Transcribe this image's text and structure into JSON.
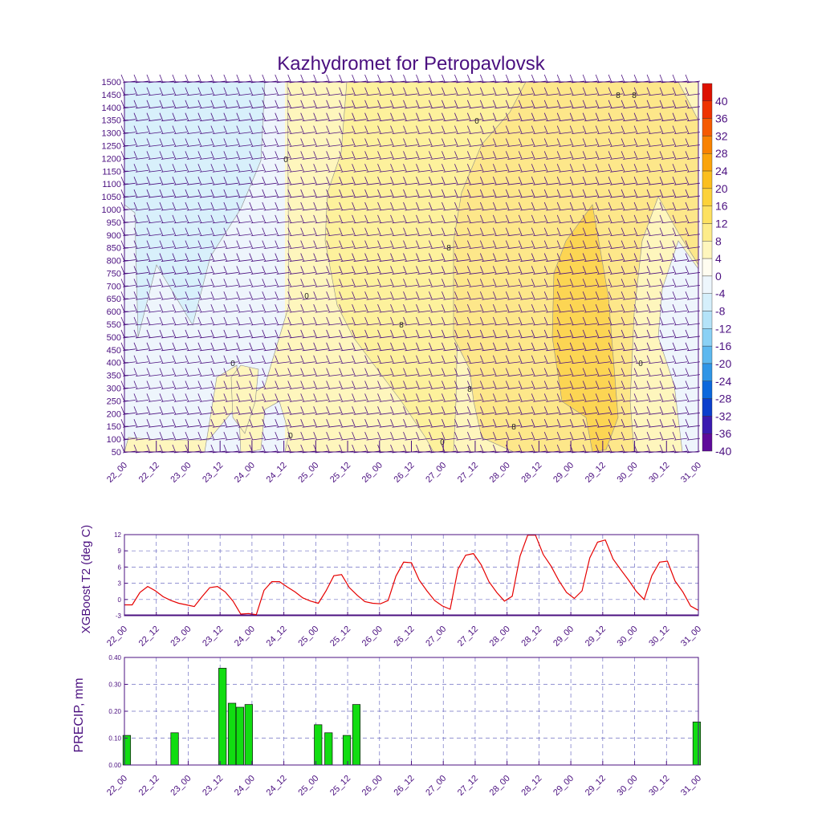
{
  "title": "Kazhydromet for Petropavlovsk",
  "time_labels": [
    "22_00",
    "22_12",
    "23_00",
    "23_12",
    "24_00",
    "24_12",
    "25_00",
    "25_12",
    "26_00",
    "26_12",
    "27_00",
    "27_12",
    "28_00",
    "28_12",
    "29_00",
    "29_12",
    "30_00",
    "30_12",
    "31_00"
  ],
  "colors": {
    "text": "#4b1080",
    "frame": "#4b1080",
    "line": "#e60000",
    "bar": "#11dd11",
    "grid": "#3333aa"
  },
  "chart_data": [
    {
      "type": "heatmap",
      "title": "Kazhydromet for Petropavlovsk",
      "y_ticks": [
        1500,
        1450,
        1400,
        1350,
        1300,
        1250,
        1200,
        1150,
        1100,
        1050,
        1000,
        950,
        900,
        850,
        800,
        750,
        700,
        650,
        600,
        550,
        500,
        450,
        400,
        350,
        300,
        250,
        200,
        150,
        100,
        50
      ],
      "ylim": [
        50,
        1500
      ],
      "x_range": [
        "22_00",
        "31_00"
      ],
      "colorbar": {
        "labels": [
          "40",
          "36",
          "32",
          "28",
          "24",
          "20",
          "16",
          "12",
          "8",
          "4",
          "0",
          "-4",
          "-8",
          "-12",
          "-16",
          "-20",
          "-24",
          "-28",
          "-32",
          "-36",
          "-40"
        ],
        "colors": [
          "#dd1100",
          "#ee3300",
          "#f55a00",
          "#f88200",
          "#faa40a",
          "#fbbf1e",
          "#fcd23a",
          "#fde161",
          "#fdec8a",
          "#fef6bd",
          "#fffdf0",
          "#edf6fc",
          "#d5effb",
          "#b4e3f8",
          "#8ad1f5",
          "#5db8ef",
          "#2f95e6",
          "#0b68dc",
          "#0a3fcc",
          "#3a1bb0",
          "#5e0a9a"
        ]
      },
      "contour_labels": [
        "0",
        "0",
        "0",
        "0",
        "0",
        "0",
        "0",
        "8",
        "8",
        "8",
        "8",
        "8",
        "8"
      ],
      "grid": true
    },
    {
      "type": "line",
      "ylabel": "XGBoost T2 (deg C)",
      "ylim": [
        -3,
        12
      ],
      "y_ticks": [
        "12",
        "9",
        "6",
        "3",
        "0",
        "-3"
      ],
      "grid": true,
      "values": [
        -1,
        -1,
        1.3,
        2.4,
        1.6,
        0.5,
        -0.2,
        -0.7,
        -1,
        -1.3,
        0.5,
        2.2,
        2.4,
        1.4,
        -0.3,
        -2.7,
        -2.6,
        -2.8,
        1.7,
        3.3,
        3.3,
        2.3,
        1.4,
        0.3,
        -0.3,
        -0.7,
        1.6,
        4.4,
        4.6,
        2.2,
        0.8,
        -0.4,
        -0.7,
        -0.8,
        -0.2,
        4.3,
        6.9,
        6.8,
        3.6,
        1.6,
        -0.2,
        -1.2,
        -1.8,
        5.6,
        8.2,
        8.5,
        6.4,
        3.3,
        1.3,
        -0.3,
        0.6,
        8,
        11.9,
        11.9,
        8.3,
        6.2,
        3.5,
        1.3,
        0.2,
        1.6,
        7.7,
        10.6,
        11,
        7.5,
        5.5,
        3.6,
        1.5,
        0,
        4.4,
        6.9,
        7.1,
        3.4,
        1.4,
        -1.2,
        -2
      ]
    },
    {
      "type": "bar",
      "ylabel": "PRECIP, mm",
      "ylim": [
        0,
        0.4
      ],
      "y_ticks": [
        "0.40",
        "0.30",
        "0.20",
        "0.10",
        "0.00"
      ],
      "grid": true,
      "bars": [
        {
          "x": 0.3,
          "value": 0.11
        },
        {
          "x": 6.3,
          "value": 0.12
        },
        {
          "x": 12.3,
          "value": 0.36
        },
        {
          "x": 13.5,
          "value": 0.23
        },
        {
          "x": 14.5,
          "value": 0.215
        },
        {
          "x": 15.6,
          "value": 0.225
        },
        {
          "x": 24.3,
          "value": 0.15
        },
        {
          "x": 25.6,
          "value": 0.12
        },
        {
          "x": 27.9,
          "value": 0.11
        },
        {
          "x": 29.1,
          "value": 0.225
        },
        {
          "x": 71.8,
          "value": 0.16
        }
      ]
    }
  ]
}
